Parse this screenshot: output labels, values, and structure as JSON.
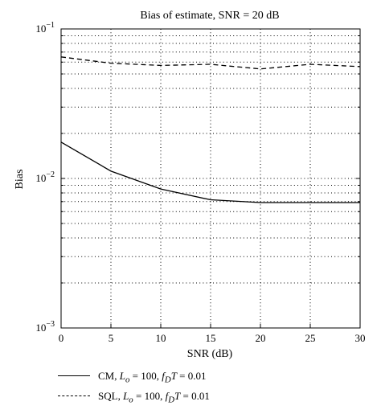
{
  "chart_data": {
    "type": "line",
    "title": "Bias of estimate, SNR = 20 dB",
    "xlabel": "SNR (dB)",
    "ylabel": "Bias",
    "xlim": [
      0,
      30
    ],
    "ylim": [
      0.001,
      0.1
    ],
    "yscale": "log",
    "grid": true,
    "x_ticks": [
      "0",
      "5",
      "10",
      "15",
      "20",
      "25",
      "30"
    ],
    "y_ticks": [
      {
        "base": "10",
        "exp": "−3"
      },
      {
        "base": "10",
        "exp": "−2"
      },
      {
        "base": "10",
        "exp": "−1"
      }
    ],
    "legend_position": "below",
    "series": [
      {
        "name": "CM",
        "style": "solid",
        "x": [
          0,
          5,
          10,
          15,
          20,
          25,
          30
        ],
        "values": [
          0.0175,
          0.0112,
          0.0085,
          0.0072,
          0.0069,
          0.0069,
          0.0069
        ]
      },
      {
        "name": "SQL",
        "style": "dashed",
        "x": [
          0,
          5,
          10,
          15,
          20,
          25,
          30
        ],
        "values": [
          0.065,
          0.059,
          0.057,
          0.058,
          0.054,
          0.058,
          0.056
        ]
      }
    ],
    "legend": [
      {
        "series": "CM",
        "lo": "100",
        "fdt": "0.01"
      },
      {
        "series": "SQL",
        "lo": "100",
        "fdt": "0.01"
      }
    ]
  }
}
